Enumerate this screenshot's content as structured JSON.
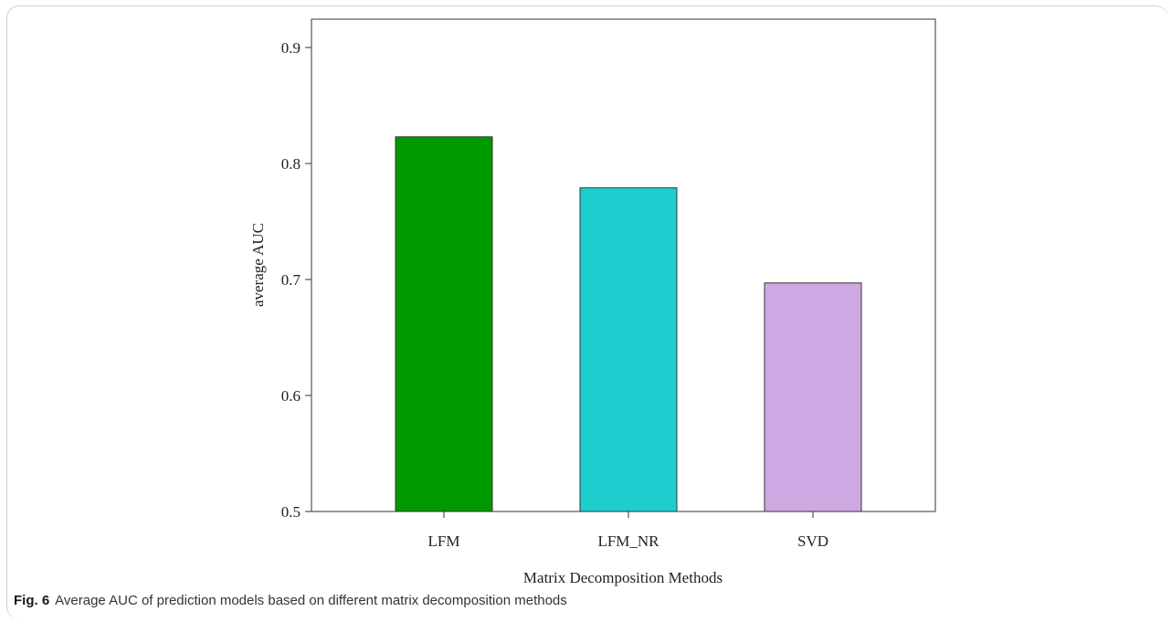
{
  "chart_data": {
    "type": "bar",
    "categories": [
      "LFM",
      "LFM_NR",
      "SVD"
    ],
    "values": [
      0.823,
      0.779,
      0.697
    ],
    "colors": [
      "#009900",
      "#1ecece",
      "#cfa8e3"
    ],
    "xlabel": "Matrix Decomposition Methods",
    "ylabel": "average AUC",
    "ylim": [
      0.5,
      0.92
    ],
    "yticks": [
      0.5,
      0.6,
      0.7,
      0.8,
      0.9
    ],
    "ytick_labels": [
      "0.5",
      "0.6",
      "0.7",
      "0.8",
      "0.9"
    ],
    "grid": false,
    "legend": "none"
  },
  "caption": {
    "label": "Fig. 6",
    "text": "Average AUC of prediction models based on different matrix decomposition methods"
  }
}
